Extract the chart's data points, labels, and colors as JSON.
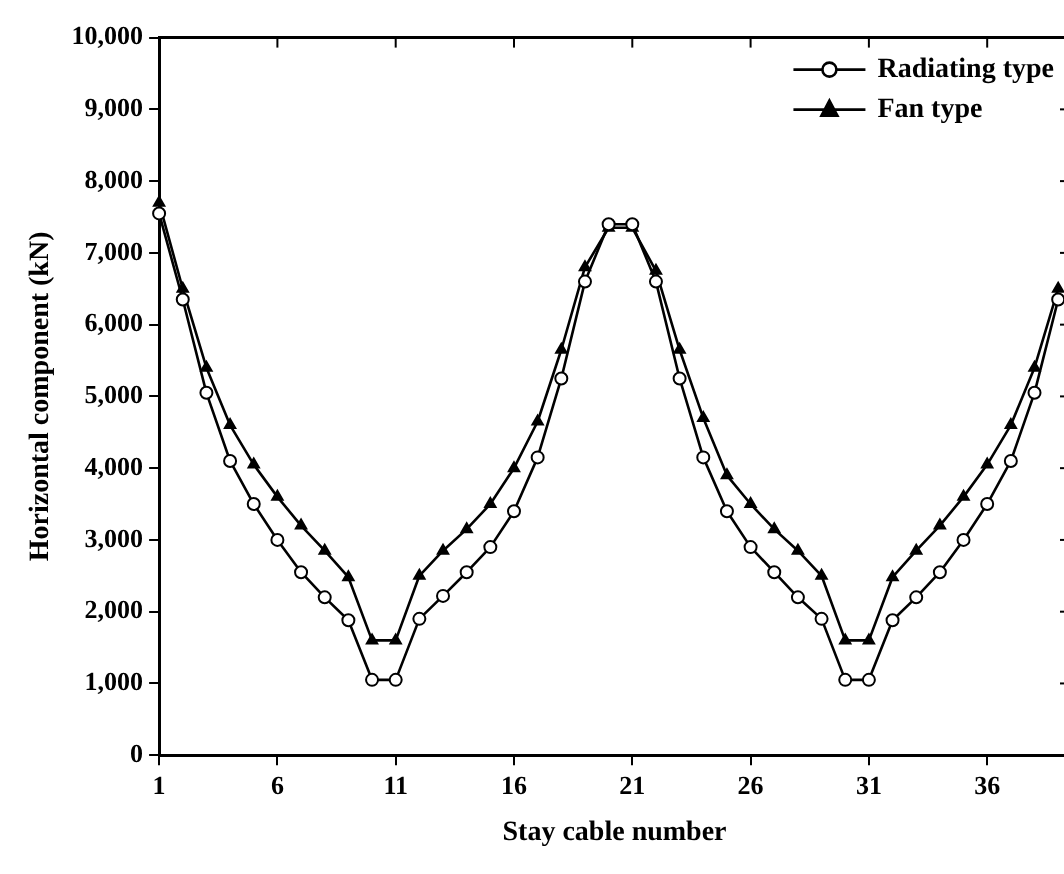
{
  "chart_data": {
    "type": "line",
    "xlabel": "Stay cable number",
    "ylabel": "Horizontal component (kN)",
    "x": [
      1,
      2,
      3,
      4,
      5,
      6,
      7,
      8,
      9,
      10,
      11,
      12,
      13,
      14,
      15,
      16,
      17,
      18,
      19,
      20,
      21,
      22,
      23,
      24,
      25,
      26,
      27,
      28,
      29,
      30,
      31,
      32,
      33,
      34,
      35,
      36,
      37,
      38,
      39
    ],
    "series": [
      {
        "name": "Radiating type",
        "color": "#000000",
        "marker": "circle",
        "values": [
          7550,
          6350,
          5050,
          4100,
          3500,
          3000,
          2550,
          2200,
          1880,
          1050,
          1050,
          1900,
          2220,
          2550,
          2900,
          3400,
          4150,
          5250,
          6600,
          7400,
          7400,
          6600,
          5250,
          4150,
          3400,
          2900,
          2550,
          2200,
          1900,
          1050,
          1050,
          1880,
          2200,
          2550,
          3000,
          3500,
          4100,
          5050,
          6350
        ]
      },
      {
        "name": "Fan type",
        "color": "#000000",
        "marker": "triangle",
        "values": [
          7700,
          6500,
          5400,
          4600,
          4050,
          3600,
          3200,
          2850,
          2480,
          1600,
          1600,
          2500,
          2850,
          3150,
          3500,
          4000,
          4650,
          5650,
          6800,
          7350,
          7350,
          6750,
          5650,
          4700,
          3900,
          3500,
          3150,
          2850,
          2500,
          1600,
          1600,
          2480,
          2850,
          3200,
          3600,
          4050,
          4600,
          5400,
          6500
        ]
      }
    ],
    "xlim": [
      1,
      39.5
    ],
    "xticks": [
      1,
      6,
      11,
      16,
      21,
      26,
      31,
      36
    ],
    "ylim": [
      0,
      10000
    ],
    "yticks": [
      0,
      {
        "value": 1000,
        "label": "1,000"
      },
      {
        "value": 2000,
        "label": "2,000"
      },
      {
        "value": 3000,
        "label": "3,000"
      },
      {
        "value": 4000,
        "label": "4,000"
      },
      {
        "value": 5000,
        "label": "5,000"
      },
      {
        "value": 6000,
        "label": "6,000"
      },
      {
        "value": 7000,
        "label": "7,000"
      },
      {
        "value": 8000,
        "label": "8,000"
      },
      {
        "value": 9000,
        "label": "9,000"
      },
      {
        "value": 10000,
        "label": "10,000"
      }
    ],
    "grid": false,
    "legend": "top right",
    "line_style": "solid"
  }
}
